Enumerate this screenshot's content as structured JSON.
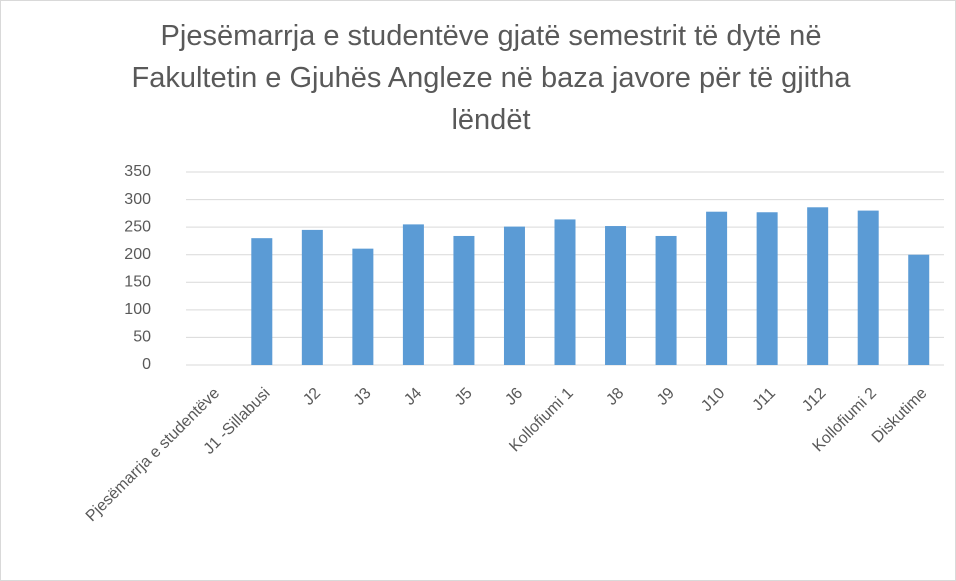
{
  "chart_data": {
    "type": "bar",
    "title": "Pjesëmarrja e studentëve gjatë semestrit të dytë në Fakultetin e Gjuhës Angleze në baza javore për të gjitha lëndët",
    "categories": [
      "Pjesëmarrja e studentëve",
      "J1 -Sillabusi",
      "J2",
      "J3",
      "J4",
      "J5",
      "J6",
      "Kollofiumi 1",
      "J8",
      "J9",
      "J10",
      "J11",
      "J12",
      "Kollofiumi 2",
      "Diskutime"
    ],
    "values": [
      null,
      230,
      245,
      211,
      255,
      234,
      251,
      264,
      252,
      234,
      278,
      277,
      286,
      280,
      200
    ],
    "color": "#5b9bd5",
    "ylim": [
      0,
      350
    ],
    "yticks": [
      0,
      50,
      100,
      150,
      200,
      250,
      300,
      350
    ],
    "grid": true
  }
}
